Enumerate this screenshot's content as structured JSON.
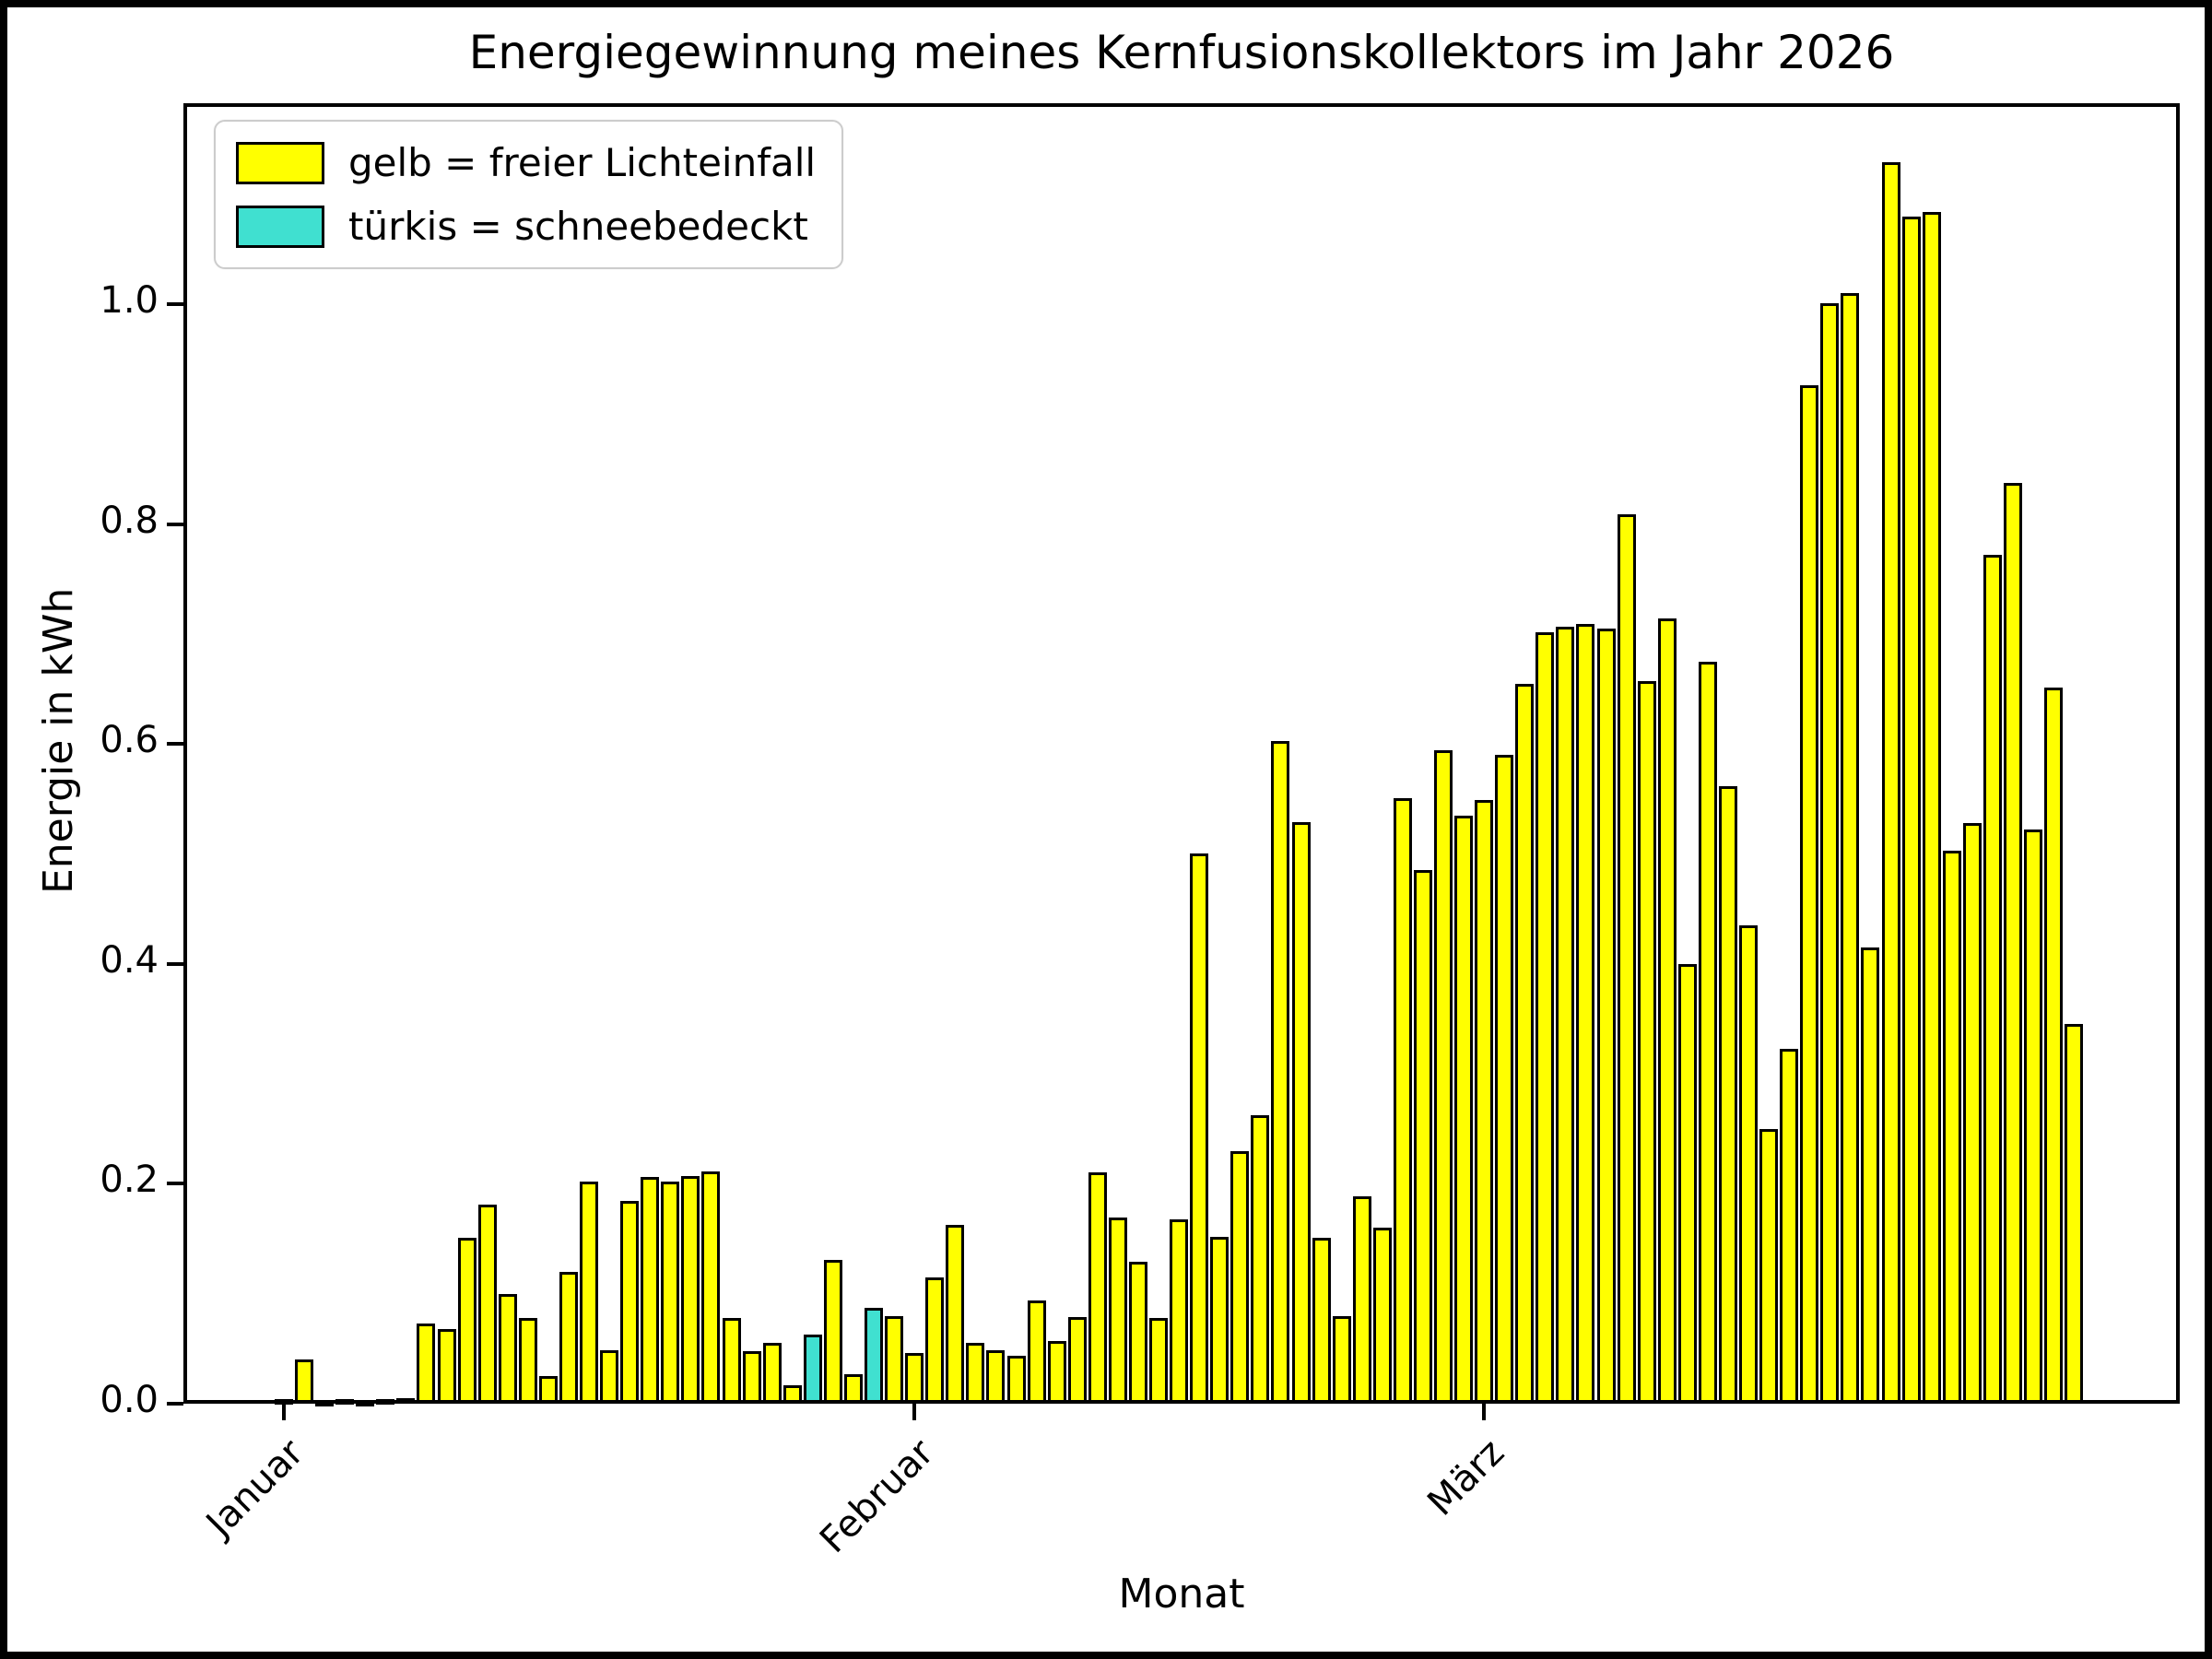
{
  "chart_data": {
    "type": "bar",
    "title": "Energiegewinnung meines Kernfusionskollektors im Jahr 2026",
    "xlabel": "Monat",
    "ylabel": "Energie in kWh",
    "ylim": [
      0,
      1.18
    ],
    "yticks": [
      0.0,
      0.2,
      0.4,
      0.6,
      0.8,
      1.0
    ],
    "x_ticks": [
      {
        "label": "Januar",
        "day_index": 0
      },
      {
        "label": "Februar",
        "day_index": 31
      },
      {
        "label": "März",
        "day_index": 59
      }
    ],
    "legend": [
      {
        "name": "sun",
        "label": "gelb = freier Lichteinfall",
        "color": "#ffff00"
      },
      {
        "name": "snow",
        "label": "türkis = schneebedeckt",
        "color": "#40e0d0"
      }
    ],
    "bar_edge_color": "#000000",
    "grid": false,
    "legend_position": "upper-left",
    "series": [
      {
        "name": "Energie pro Tag (kWh)",
        "values": [
          0.004,
          0.04,
          0.002,
          0.004,
          0.002,
          0.004,
          0.005,
          0.073,
          0.068,
          0.151,
          0.181,
          0.1,
          0.078,
          0.025,
          0.12,
          0.202,
          0.049,
          0.184,
          0.206,
          0.202,
          0.207,
          0.211,
          0.078,
          0.048,
          0.055,
          0.017,
          0.063,
          0.131,
          0.027,
          0.087,
          0.08,
          0.046,
          0.115,
          0.163,
          0.055,
          0.049,
          0.044,
          0.094,
          0.057,
          0.079,
          0.21,
          0.169,
          0.129,
          0.078,
          0.168,
          0.5,
          0.152,
          0.23,
          0.262,
          0.603,
          0.529,
          0.151,
          0.08,
          0.189,
          0.16,
          0.551,
          0.485,
          0.594,
          0.535,
          0.549,
          0.59,
          0.655,
          0.702,
          0.707,
          0.709,
          0.705,
          0.809,
          0.657,
          0.714,
          0.4,
          0.675,
          0.562,
          0.435,
          0.25,
          0.323,
          0.926,
          1.001,
          1.01,
          0.415,
          1.129,
          1.08,
          1.084,
          0.503,
          0.528,
          0.772,
          0.837,
          0.522,
          0.651,
          0.345
        ]
      }
    ],
    "snow_day_indices": [
      26,
      29
    ]
  }
}
